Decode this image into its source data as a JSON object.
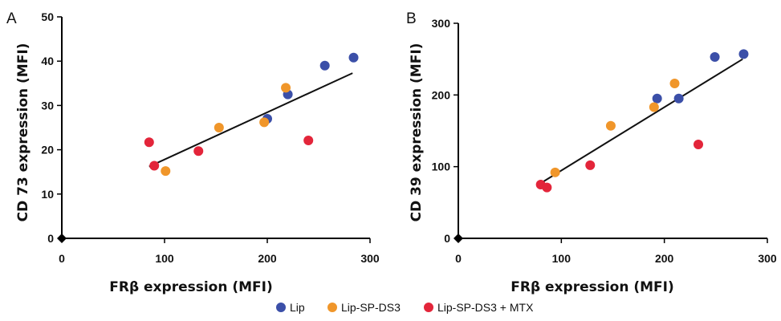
{
  "legend": [
    {
      "name": "Lip",
      "color": "#3b4fa8"
    },
    {
      "name": "Lip-SP-DS3",
      "color": "#f0962a"
    },
    {
      "name": "Lip-SP-DS3 + MTX",
      "color": "#e3253a"
    }
  ],
  "chart_data": [
    {
      "type": "scatter",
      "panel": "A",
      "xlabel": "FRβ expression (MFI)",
      "ylabel": "CD 73 expression (MFI)",
      "xlim": [
        0,
        300
      ],
      "ylim": [
        0,
        50
      ],
      "xticks": [
        "0",
        "100",
        "200",
        "300"
      ],
      "yticks": [
        "0",
        "10",
        "20",
        "30",
        "40",
        "50"
      ],
      "series": [
        {
          "name": "Lip",
          "color": "#3b4fa8",
          "points": [
            [
              200,
              27
            ],
            [
              220,
              32.5
            ],
            [
              256,
              39
            ],
            [
              284,
              40.8
            ]
          ]
        },
        {
          "name": "Lip-SP-DS3",
          "color": "#f0962a",
          "points": [
            [
              101,
              15.2
            ],
            [
              153,
              25
            ],
            [
              197,
              26.2
            ],
            [
              218,
              34
            ]
          ]
        },
        {
          "name": "Lip-SP-DS3 + MTX",
          "color": "#e3253a",
          "points": [
            [
              85,
              21.7
            ],
            [
              90,
              16.4
            ],
            [
              133,
              19.7
            ],
            [
              240,
              22.1
            ]
          ]
        }
      ],
      "trendline": [
        [
          85,
          16.2
        ],
        [
          283,
          37.3
        ]
      ]
    },
    {
      "type": "scatter",
      "panel": "B",
      "xlabel": "FRβ expression (MFI)",
      "ylabel": "CD 39 expression (MFI)",
      "xlim": [
        0,
        300
      ],
      "ylim": [
        0,
        300
      ],
      "xticks": [
        "0",
        "100",
        "200",
        "300"
      ],
      "yticks": [
        "0",
        "100",
        "200",
        "300"
      ],
      "series": [
        {
          "name": "Lip",
          "color": "#3b4fa8",
          "points": [
            [
              193,
              195
            ],
            [
              214,
              195
            ],
            [
              249,
              253
            ],
            [
              277,
              257
            ]
          ]
        },
        {
          "name": "Lip-SP-DS3",
          "color": "#f0962a",
          "points": [
            [
              94,
              92
            ],
            [
              148,
              157
            ],
            [
              190,
              183
            ],
            [
              210,
              216
            ]
          ]
        },
        {
          "name": "Lip-SP-DS3 + MTX",
          "color": "#e3253a",
          "points": [
            [
              80,
              75
            ],
            [
              86,
              71
            ],
            [
              128,
              102
            ],
            [
              233,
              131
            ]
          ]
        }
      ],
      "trendline": [
        [
          80,
          77
        ],
        [
          276,
          250
        ]
      ]
    }
  ]
}
